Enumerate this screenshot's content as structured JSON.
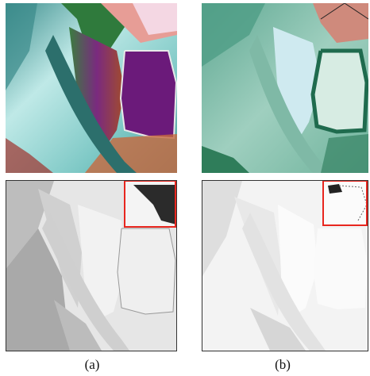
{
  "captions": {
    "a": "(a)",
    "b": "(b)"
  },
  "colors": {
    "highlight_box": "#e8261f",
    "false_color_cyan": "#6fd0cc",
    "false_color_purple": "#6b1a7a",
    "true_color_teal": "#6fb6a0",
    "true_color_dark_green": "#1f6b4e"
  }
}
